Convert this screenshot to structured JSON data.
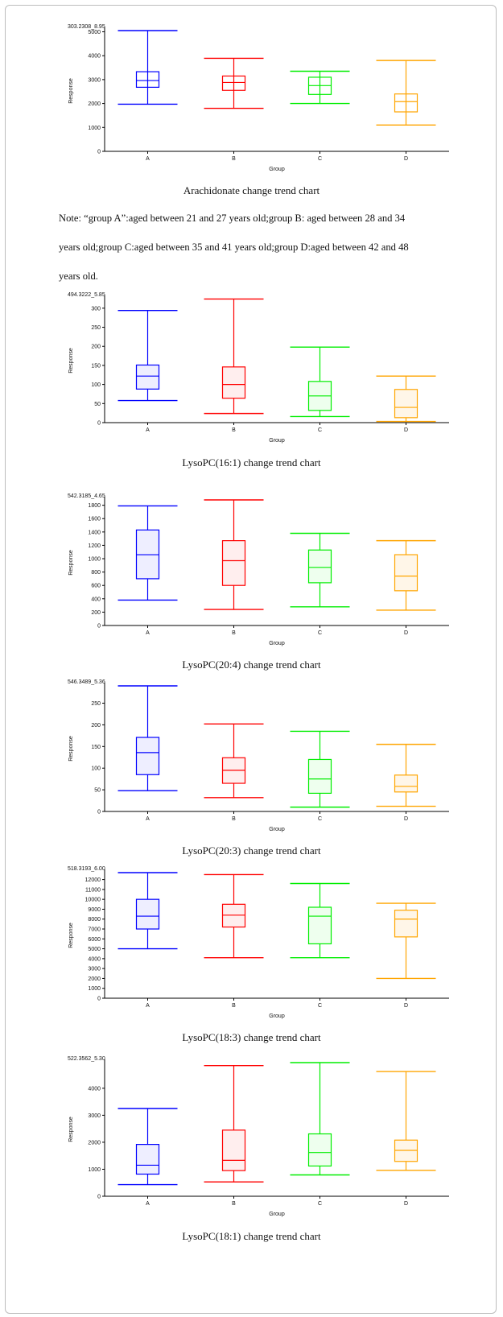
{
  "note": {
    "lines": [
      "Note: “group A”:aged between 21 and 27 years old;group B: aged between 28 and 34",
      "years old;group C:aged between 35 and 41 years old;group D:aged between 42 and 48",
      "years old."
    ]
  },
  "group_colors": {
    "A": "#0000ff",
    "B": "#ff0000",
    "C": "#00ee00",
    "D": "#ffa500"
  },
  "group_fills": {
    "A": "#eeeeff",
    "B": "#ffeeee",
    "C": "#eeffee",
    "D": "#fff6e8"
  },
  "chart_data": [
    {
      "type": "box",
      "title": "303.2308_8.95",
      "caption": "Arachidonate change trend chart",
      "xlabel": "Group",
      "ylabel": "Response",
      "categories": [
        "A",
        "B",
        "C",
        "D"
      ],
      "ylim": [
        0,
        5050
      ],
      "yticks": [
        0,
        1000,
        2000,
        3000,
        4000,
        5000
      ],
      "filled_boxes": false,
      "series": [
        {
          "name": "A",
          "min": 1970,
          "q1": 2680,
          "median": 2960,
          "q3": 3330,
          "max": 5050
        },
        {
          "name": "B",
          "min": 1800,
          "q1": 2550,
          "median": 2880,
          "q3": 3150,
          "max": 3890
        },
        {
          "name": "C",
          "min": 2000,
          "q1": 2380,
          "median": 2750,
          "q3": 3100,
          "max": 3350
        },
        {
          "name": "D",
          "min": 1100,
          "q1": 1650,
          "median": 2080,
          "q3": 2400,
          "max": 3800
        }
      ]
    },
    {
      "type": "box",
      "title": "494.3222_5.85",
      "caption": "LysoPC(16:1) change trend chart",
      "xlabel": "Group",
      "ylabel": "Response",
      "categories": [
        "A",
        "B",
        "C",
        "D"
      ],
      "ylim": [
        0,
        325
      ],
      "yticks": [
        0,
        50,
        100,
        150,
        200,
        250,
        300
      ],
      "filled_boxes": true,
      "series": [
        {
          "name": "A",
          "min": 58,
          "q1": 88,
          "median": 122,
          "q3": 151,
          "max": 294
        },
        {
          "name": "B",
          "min": 24,
          "q1": 64,
          "median": 100,
          "q3": 146,
          "max": 324
        },
        {
          "name": "C",
          "min": 16,
          "q1": 32,
          "median": 70,
          "q3": 108,
          "max": 198
        },
        {
          "name": "D",
          "min": 3,
          "q1": 13,
          "median": 40,
          "q3": 87,
          "max": 122
        }
      ]
    },
    {
      "type": "box",
      "title": "542.3185_4.65",
      "caption": "LysoPC(20:4) change trend chart",
      "xlabel": "Group",
      "ylabel": "Response",
      "categories": [
        "A",
        "B",
        "C",
        "D"
      ],
      "ylim": [
        0,
        1880
      ],
      "yticks": [
        0,
        200,
        400,
        600,
        800,
        1000,
        1200,
        1400,
        1600,
        1800
      ],
      "filled_boxes": true,
      "series": [
        {
          "name": "A",
          "min": 380,
          "q1": 700,
          "median": 1060,
          "q3": 1430,
          "max": 1790
        },
        {
          "name": "B",
          "min": 240,
          "q1": 600,
          "median": 970,
          "q3": 1270,
          "max": 1880
        },
        {
          "name": "C",
          "min": 280,
          "q1": 640,
          "median": 870,
          "q3": 1130,
          "max": 1380
        },
        {
          "name": "D",
          "min": 230,
          "q1": 520,
          "median": 740,
          "q3": 1060,
          "max": 1270
        }
      ]
    },
    {
      "type": "box",
      "title": "546.3489_5.36",
      "caption": "LysoPC(20:3) change trend chart",
      "xlabel": "Group",
      "ylabel": "Response",
      "categories": [
        "A",
        "B",
        "C",
        "D"
      ],
      "ylim": [
        0,
        290
      ],
      "yticks": [
        0,
        50,
        100,
        150,
        200,
        250
      ],
      "filled_boxes": true,
      "series": [
        {
          "name": "A",
          "min": 48,
          "q1": 85,
          "median": 136,
          "q3": 171,
          "max": 290
        },
        {
          "name": "B",
          "min": 32,
          "q1": 65,
          "median": 95,
          "q3": 124,
          "max": 202
        },
        {
          "name": "C",
          "min": 10,
          "q1": 42,
          "median": 75,
          "q3": 120,
          "max": 185
        },
        {
          "name": "D",
          "min": 12,
          "q1": 45,
          "median": 58,
          "q3": 84,
          "max": 155
        }
      ]
    },
    {
      "type": "box",
      "title": "518.3193_6.00",
      "caption": "LysoPC(18:3) change trend chart",
      "xlabel": "Group",
      "ylabel": "Response",
      "categories": [
        "A",
        "B",
        "C",
        "D"
      ],
      "ylim": [
        0,
        12700
      ],
      "yticks": [
        0,
        1000,
        2000,
        3000,
        4000,
        5000,
        6000,
        7000,
        8000,
        9000,
        10000,
        11000,
        12000
      ],
      "filled_boxes": true,
      "series": [
        {
          "name": "A",
          "min": 5000,
          "q1": 7000,
          "median": 8300,
          "q3": 10000,
          "max": 12700
        },
        {
          "name": "B",
          "min": 4100,
          "q1": 7200,
          "median": 8400,
          "q3": 9500,
          "max": 12500
        },
        {
          "name": "C",
          "min": 4100,
          "q1": 5500,
          "median": 8300,
          "q3": 9200,
          "max": 11600
        },
        {
          "name": "D",
          "min": 2000,
          "q1": 6200,
          "median": 8000,
          "q3": 8900,
          "max": 9600
        }
      ]
    },
    {
      "type": "box",
      "title": "522.3562_5.30",
      "caption": "LysoPC(18:1) change trend chart",
      "xlabel": "Group",
      "ylabel": "Response",
      "categories": [
        "A",
        "B",
        "C",
        "D"
      ],
      "ylim": [
        0,
        4950
      ],
      "yticks": [
        0,
        1000,
        2000,
        3000,
        4000
      ],
      "filled_boxes": true,
      "series": [
        {
          "name": "A",
          "min": 430,
          "q1": 820,
          "median": 1150,
          "q3": 1920,
          "max": 3250
        },
        {
          "name": "B",
          "min": 530,
          "q1": 950,
          "median": 1330,
          "q3": 2450,
          "max": 4840
        },
        {
          "name": "C",
          "min": 790,
          "q1": 1120,
          "median": 1620,
          "q3": 2310,
          "max": 4950
        },
        {
          "name": "D",
          "min": 960,
          "q1": 1290,
          "median": 1700,
          "q3": 2080,
          "max": 4620
        }
      ]
    }
  ]
}
